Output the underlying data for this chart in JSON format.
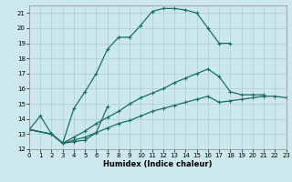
{
  "title": "",
  "xlabel": "Humidex (Indice chaleur)",
  "ylabel": "",
  "xlim": [
    0,
    23
  ],
  "ylim": [
    12,
    21.5
  ],
  "yticks": [
    12,
    13,
    14,
    15,
    16,
    17,
    18,
    19,
    20,
    21
  ],
  "xticks": [
    0,
    1,
    2,
    3,
    4,
    5,
    6,
    7,
    8,
    9,
    10,
    11,
    12,
    13,
    14,
    15,
    16,
    17,
    18,
    19,
    20,
    21,
    22,
    23
  ],
  "bg_color": "#cce8ec",
  "grid_color": "#aacdd2",
  "line_color": "#1a7060",
  "line_width": 0.9,
  "marker": "+",
  "marker_size": 3.5,
  "marker_ew": 0.8,
  "lines": [
    {
      "x": [
        0,
        1,
        2,
        3,
        4,
        5,
        6,
        7,
        8,
        9,
        10,
        11,
        12,
        13,
        14,
        15,
        16,
        17,
        18
      ],
      "y": [
        13.3,
        14.2,
        13.0,
        12.4,
        14.7,
        15.8,
        17.0,
        18.6,
        19.4,
        19.4,
        20.2,
        21.1,
        21.3,
        21.3,
        21.2,
        21.0,
        20.0,
        19.0,
        19.0
      ]
    },
    {
      "x": [
        0,
        2,
        3,
        4,
        5,
        6,
        7
      ],
      "y": [
        13.3,
        13.0,
        12.4,
        12.5,
        12.6,
        13.1,
        14.8
      ]
    },
    {
      "x": [
        0,
        2,
        3,
        4,
        5,
        6,
        7,
        8,
        9,
        10,
        11,
        12,
        13,
        14,
        15,
        16,
        17,
        18,
        19,
        20,
        21
      ],
      "y": [
        13.3,
        13.0,
        12.4,
        12.8,
        13.2,
        13.7,
        14.1,
        14.5,
        15.0,
        15.4,
        15.7,
        16.0,
        16.4,
        16.7,
        17.0,
        17.3,
        16.8,
        15.8,
        15.6,
        15.6,
        15.6
      ]
    },
    {
      "x": [
        0,
        2,
        3,
        4,
        5,
        6,
        7,
        8,
        9,
        10,
        11,
        12,
        13,
        14,
        15,
        16,
        17,
        18,
        19,
        20,
        21,
        22,
        23
      ],
      "y": [
        13.3,
        13.0,
        12.4,
        12.6,
        12.8,
        13.1,
        13.4,
        13.7,
        13.9,
        14.2,
        14.5,
        14.7,
        14.9,
        15.1,
        15.3,
        15.5,
        15.1,
        15.2,
        15.3,
        15.4,
        15.5,
        15.5,
        15.4
      ]
    }
  ]
}
